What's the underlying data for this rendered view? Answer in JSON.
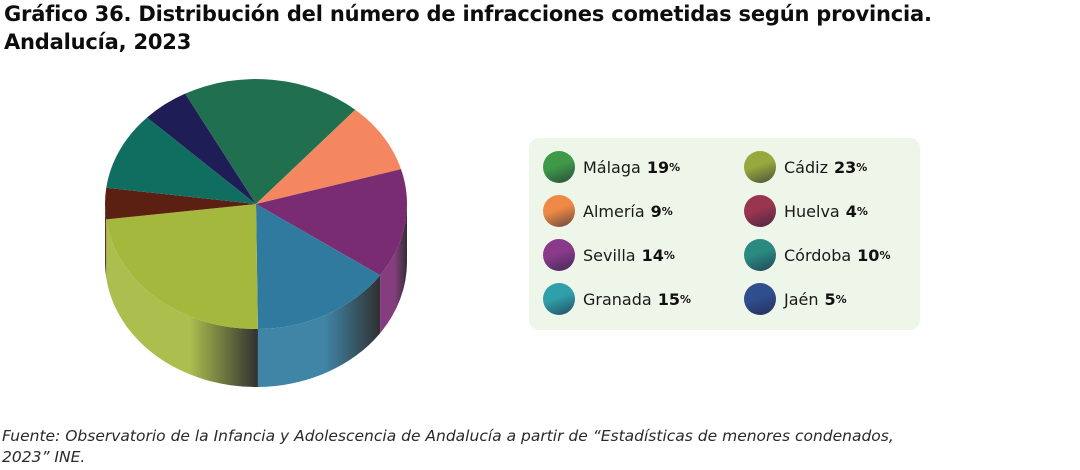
{
  "title": {
    "line1": "Gráfico 36. Distribución del número de infracciones cometidas según provincia.",
    "line2": "Andalucía, 2023"
  },
  "source": {
    "line1": "Fuente: Observatorio de la Infancia y Adolescencia de Andalucía a partir de “Estadísticas de menores condenados,",
    "line2": "2023” INE."
  },
  "chart_data": {
    "type": "pie",
    "style": "3d",
    "legend_placement": "right",
    "percent_sign": "%",
    "slices": [
      {
        "name": "Málaga",
        "value": 19,
        "color": "#207050",
        "legend_color": "#3f9a48"
      },
      {
        "name": "Almería",
        "value": 9,
        "color": "#f4875f",
        "legend_color": "#ee8a45"
      },
      {
        "name": "Sevilla",
        "value": 14,
        "color": "#7a2c72",
        "legend_color": "#8a3a8a"
      },
      {
        "name": "Granada",
        "value": 15,
        "color": "#2f7a9e",
        "legend_color": "#2fa0aa"
      },
      {
        "name": "Cádiz",
        "value": 23,
        "color": "#a5b83e",
        "legend_color": "#98a83c"
      },
      {
        "name": "Huelva",
        "value": 4,
        "color": "#5c2013",
        "legend_color": "#9a3550"
      },
      {
        "name": "Córdoba",
        "value": 10,
        "color": "#0f6e60",
        "legend_color": "#2a8a82"
      },
      {
        "name": "Jaén",
        "value": 5,
        "color": "#1e1d55",
        "legend_color": "#2f4e8e"
      }
    ],
    "legend_columns": [
      [
        "Málaga",
        "Almería",
        "Sevilla",
        "Granada"
      ],
      [
        "Cádiz",
        "Huelva",
        "Córdoba",
        "Jaén"
      ]
    ]
  }
}
